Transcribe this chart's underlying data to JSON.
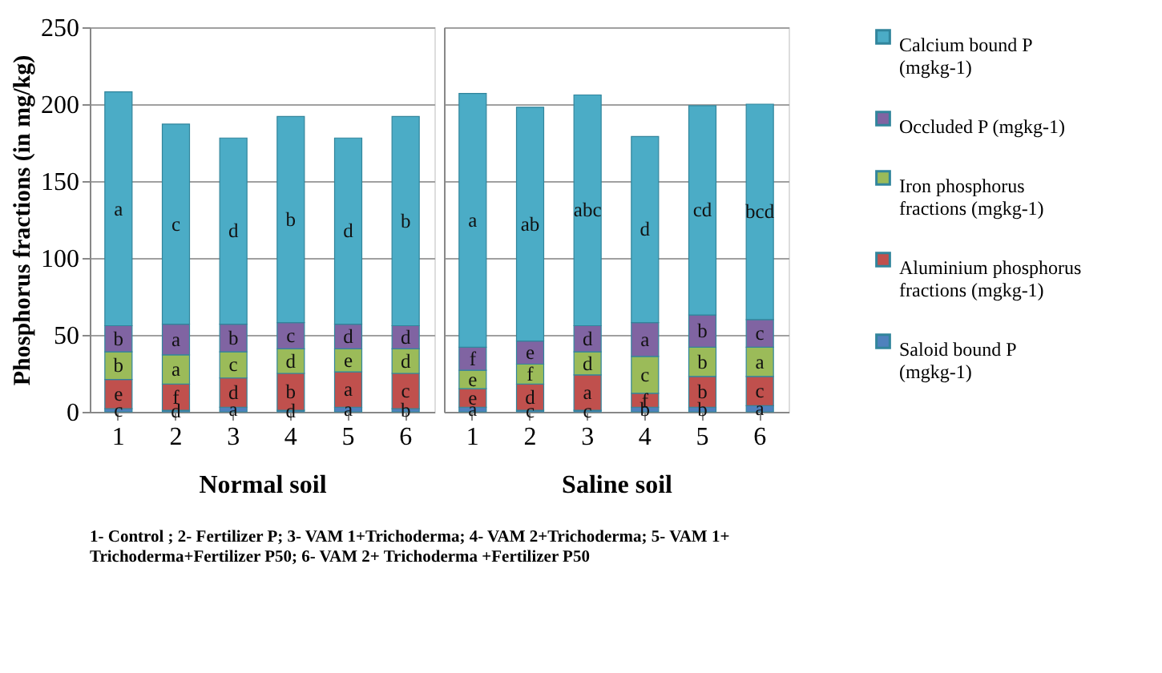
{
  "chart_data": [
    {
      "type": "bar",
      "stacked": true,
      "xlabel": "Normal soil",
      "ylabel": "Phosphorus fractions (in mg/kg)",
      "categories": [
        "1",
        "2",
        "3",
        "4",
        "5",
        "6"
      ],
      "ylim": [
        0,
        250
      ],
      "yticks": [
        0,
        50,
        100,
        150,
        200,
        250
      ],
      "grid": "y",
      "legend": "right",
      "series": [
        {
          "name": "Saloid bound P (mgkg-1)",
          "color": "#4f81bd",
          "values": [
            2,
            1,
            3,
            1,
            3,
            2
          ],
          "value_labels": [
            "c",
            "d",
            "a",
            "d",
            "a",
            "b"
          ]
        },
        {
          "name": "Aluminium phosphorus fractions (mgkg-1)",
          "color": "#c0504d",
          "values": [
            19,
            17,
            19,
            24,
            23,
            23
          ],
          "value_labels": [
            "e",
            "f",
            "d",
            "b",
            "a",
            "c"
          ]
        },
        {
          "name": "Iron phosphorus fractions (mgkg-1)",
          "color": "#9bbb59",
          "values": [
            18,
            19,
            17,
            16,
            15,
            16
          ],
          "value_labels": [
            "b",
            "a",
            "c",
            "d",
            "e",
            "d"
          ]
        },
        {
          "name": "Occluded P (mgkg-1)",
          "color": "#8064a2",
          "values": [
            17,
            20,
            18,
            17,
            16,
            15
          ],
          "value_labels": [
            "b",
            "a",
            "b",
            "c",
            "d",
            "d"
          ]
        },
        {
          "name": "Calcium bound P (mgkg-1)",
          "color": "#4bacc6",
          "values": [
            152,
            130,
            121,
            134,
            121,
            136
          ],
          "value_labels": [
            "a",
            "c",
            "d",
            "b",
            "d",
            "b"
          ]
        }
      ],
      "annotations": [
        "1- Control ; 2- Fertilizer  P; 3- VAM 1+Trichoderma; 4- VAM 2+Trichoderma; 5- VAM 1+ Trichoderma+Fertilizer  P50; 6- VAM 2+ Trichoderma +Fertilizer  P50"
      ]
    },
    {
      "type": "bar",
      "stacked": true,
      "xlabel": "Saline soil",
      "categories": [
        "1",
        "2",
        "3",
        "4",
        "5",
        "6"
      ],
      "ylim": [
        0,
        250
      ],
      "yticks": [
        0,
        50,
        100,
        150,
        200,
        250
      ],
      "grid": "y",
      "tick_labels": "x",
      "legend": "right",
      "series": [
        {
          "name": "Saloid bound P (mgkg-1)",
          "color": "#4f81bd",
          "values": [
            3,
            1,
            1,
            3,
            3,
            4
          ],
          "value_labels": [
            "a",
            "c",
            "c",
            "b",
            "b",
            "a"
          ]
        },
        {
          "name": "Aluminium phosphorus fractions (mgkg-1)",
          "color": "#c0504d",
          "values": [
            12,
            17,
            23,
            9,
            20,
            19
          ],
          "value_labels": [
            "e",
            "d",
            "a",
            "f",
            "b",
            "c"
          ]
        },
        {
          "name": "Iron phosphorus fractions (mgkg-1)",
          "color": "#9bbb59",
          "values": [
            12,
            13,
            15,
            24,
            19,
            19
          ],
          "value_labels": [
            "e",
            "f",
            "d",
            "c",
            "b",
            "a"
          ]
        },
        {
          "name": "Occluded P (mgkg-1)",
          "color": "#8064a2",
          "values": [
            15,
            15,
            17,
            22,
            21,
            18
          ],
          "value_labels": [
            "f",
            "e",
            "d",
            "a",
            "b",
            "c"
          ]
        },
        {
          "name": "Calcium bound P (mgkg-1)",
          "color": "#4bacc6",
          "values": [
            165,
            152,
            150,
            121,
            136,
            140
          ],
          "value_labels": [
            "a",
            "ab",
            "abc",
            "d",
            "cd",
            "bcd"
          ]
        }
      ]
    }
  ]
}
